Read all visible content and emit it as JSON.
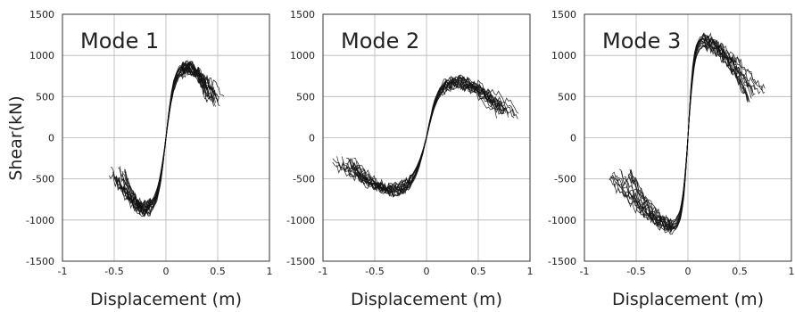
{
  "figure": {
    "y_axis_label": "Shear(kN)",
    "line_color": "#111111",
    "grid_color": "#b5b5b5"
  },
  "chart_data": [
    {
      "type": "line",
      "panel_label": "Mode 1",
      "xlabel": "Displacement (m)",
      "ylabel": "Shear(kN)",
      "xlim": [
        -1,
        1
      ],
      "ylim": [
        -1500,
        1500
      ],
      "xticks": [
        -1,
        -0.5,
        0,
        0.5,
        1
      ],
      "yticks": [
        -1500,
        -1000,
        -500,
        0,
        500,
        1000,
        1500
      ],
      "xtick_labels": [
        "-1",
        "-0.5",
        "0",
        "0.5",
        "1"
      ],
      "ytick_labels": [
        "-1500",
        "-1000",
        "-500",
        "0",
        "500",
        "1000",
        "1500"
      ],
      "grid": true,
      "curves": {
        "count": 16,
        "peak_shear_positive": 870,
        "peak_disp_positive": 0.22,
        "end_disp_positive": 0.55,
        "end_shear_positive": 450,
        "peak_shear_negative": -880,
        "peak_disp_negative": -0.22,
        "end_disp_negative": -0.55,
        "end_shear_negative": -420
      }
    },
    {
      "type": "line",
      "panel_label": "Mode 2",
      "xlabel": "Displacement (m)",
      "ylabel": "",
      "xlim": [
        -1,
        1
      ],
      "ylim": [
        -1500,
        1500
      ],
      "xticks": [
        -1,
        -0.5,
        0,
        0.5,
        1
      ],
      "yticks": [
        -1500,
        -1000,
        -500,
        0,
        500,
        1000,
        1500
      ],
      "xtick_labels": [
        "-1",
        "-0.5",
        "0",
        "0.5",
        "1"
      ],
      "ytick_labels": [
        "-1500",
        "-1000",
        "-500",
        "0",
        "500",
        "1000",
        "1500"
      ],
      "grid": true,
      "curves": {
        "count": 16,
        "peak_shear_positive": 680,
        "peak_disp_positive": 0.3,
        "end_disp_positive": 0.88,
        "end_shear_positive": 300,
        "peak_shear_negative": -640,
        "peak_disp_negative": -0.35,
        "end_disp_negative": -0.9,
        "end_shear_negative": -300
      }
    },
    {
      "type": "line",
      "panel_label": "Mode 3",
      "xlabel": "Displacement (m)",
      "ylabel": "",
      "xlim": [
        -1,
        1
      ],
      "ylim": [
        -1500,
        1500
      ],
      "xticks": [
        -1,
        -0.5,
        0,
        0.5,
        1
      ],
      "yticks": [
        -1500,
        -1000,
        -500,
        0,
        500,
        1000,
        1500
      ],
      "xtick_labels": [
        "-1",
        "-0.5",
        "0",
        "0.5",
        "1"
      ],
      "ytick_labels": [
        "-1500",
        "-1000",
        "-500",
        "0",
        "500",
        "1000",
        "1500"
      ],
      "grid": true,
      "curves": {
        "count": 16,
        "peak_shear_positive": 1180,
        "peak_disp_positive": 0.15,
        "end_disp_positive": 0.75,
        "end_shear_positive": 500,
        "peak_shear_negative": -1080,
        "peak_disp_negative": -0.15,
        "end_disp_negative": -0.75,
        "end_shear_negative": -450
      }
    }
  ]
}
